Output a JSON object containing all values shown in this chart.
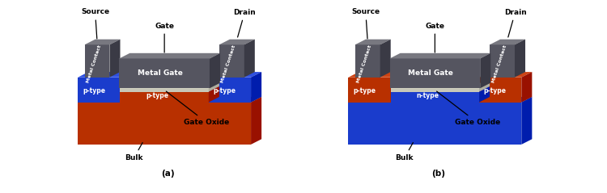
{
  "fig_width": 7.5,
  "fig_height": 2.39,
  "dpi": 100,
  "bg_color": "#ffffff",
  "colors": {
    "p_type_red": "#B83000",
    "n_type_blue": "#1A3CCC",
    "red_implant": "#B83000",
    "blue_implant": "#1A3CCC",
    "metal_front": "#555560",
    "metal_top": "#787880",
    "metal_right": "#3a3a45",
    "oxide_color": "#c8c8b8",
    "black": "#000000",
    "white": "#ffffff"
  },
  "diagrams": [
    {
      "label": "(a)",
      "substrate_color": "#B83000",
      "implant_color": "#1A3CCC",
      "channel_color": "#B83000",
      "channel_label": "p-type",
      "left_label": "p-type",
      "right_label": "p-type"
    },
    {
      "label": "(b)",
      "substrate_color": "#1A3CCC",
      "implant_color": "#B83000",
      "channel_color": "#1A3CCC",
      "channel_label": "n-type",
      "left_label": "p-type",
      "right_label": "p-type"
    }
  ]
}
